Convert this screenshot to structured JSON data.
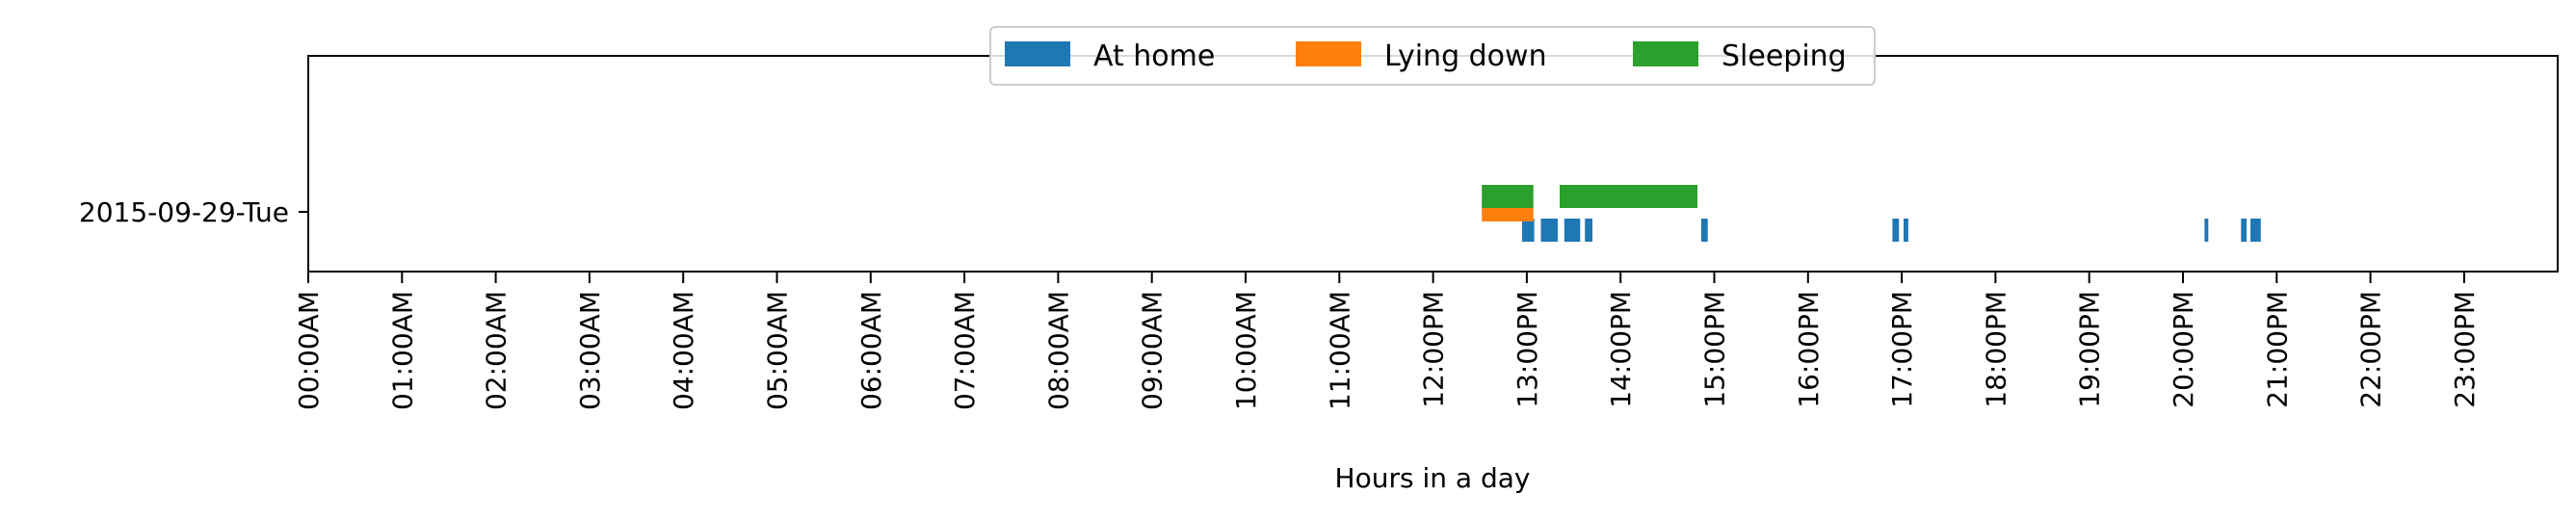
{
  "chart_data": {
    "type": "bar",
    "orientation": "horizontal-timeline",
    "xlabel": "Hours in a day",
    "xlim": [
      0,
      24
    ],
    "x_ticks": [
      {
        "value": 0,
        "label": "00:00AM"
      },
      {
        "value": 1,
        "label": "01:00AM"
      },
      {
        "value": 2,
        "label": "02:00AM"
      },
      {
        "value": 3,
        "label": "03:00AM"
      },
      {
        "value": 4,
        "label": "04:00AM"
      },
      {
        "value": 5,
        "label": "05:00AM"
      },
      {
        "value": 6,
        "label": "06:00AM"
      },
      {
        "value": 7,
        "label": "07:00AM"
      },
      {
        "value": 8,
        "label": "08:00AM"
      },
      {
        "value": 9,
        "label": "09:00AM"
      },
      {
        "value": 10,
        "label": "10:00AM"
      },
      {
        "value": 11,
        "label": "11:00AM"
      },
      {
        "value": 12,
        "label": "12:00PM"
      },
      {
        "value": 13,
        "label": "13:00PM"
      },
      {
        "value": 14,
        "label": "14:00PM"
      },
      {
        "value": 15,
        "label": "15:00PM"
      },
      {
        "value": 16,
        "label": "16:00PM"
      },
      {
        "value": 17,
        "label": "17:00PM"
      },
      {
        "value": 18,
        "label": "18:00PM"
      },
      {
        "value": 19,
        "label": "19:00PM"
      },
      {
        "value": 20,
        "label": "20:00PM"
      },
      {
        "value": 21,
        "label": "21:00PM"
      },
      {
        "value": 22,
        "label": "22:00PM"
      },
      {
        "value": 23,
        "label": "23:00PM"
      }
    ],
    "categories": [
      "2015-09-29-Tue"
    ],
    "legend_position": "top-center",
    "grid": false,
    "series": [
      {
        "name": "At home",
        "color": "#1f77b4",
        "intervals": [
          [
            12.95,
            13.08
          ],
          [
            13.15,
            13.33
          ],
          [
            13.4,
            13.57
          ],
          [
            13.62,
            13.7
          ],
          [
            14.86,
            14.93
          ],
          [
            16.9,
            16.97
          ],
          [
            17.02,
            17.07
          ],
          [
            20.23,
            20.27
          ],
          [
            20.62,
            20.68
          ],
          [
            20.72,
            20.83
          ]
        ]
      },
      {
        "name": "Lying down",
        "color": "#ff7f0e",
        "intervals": [
          [
            12.52,
            13.07
          ]
        ]
      },
      {
        "name": "Sleeping",
        "color": "#2ca02c",
        "intervals": [
          [
            12.52,
            13.07
          ],
          [
            13.35,
            14.82
          ]
        ]
      }
    ]
  }
}
